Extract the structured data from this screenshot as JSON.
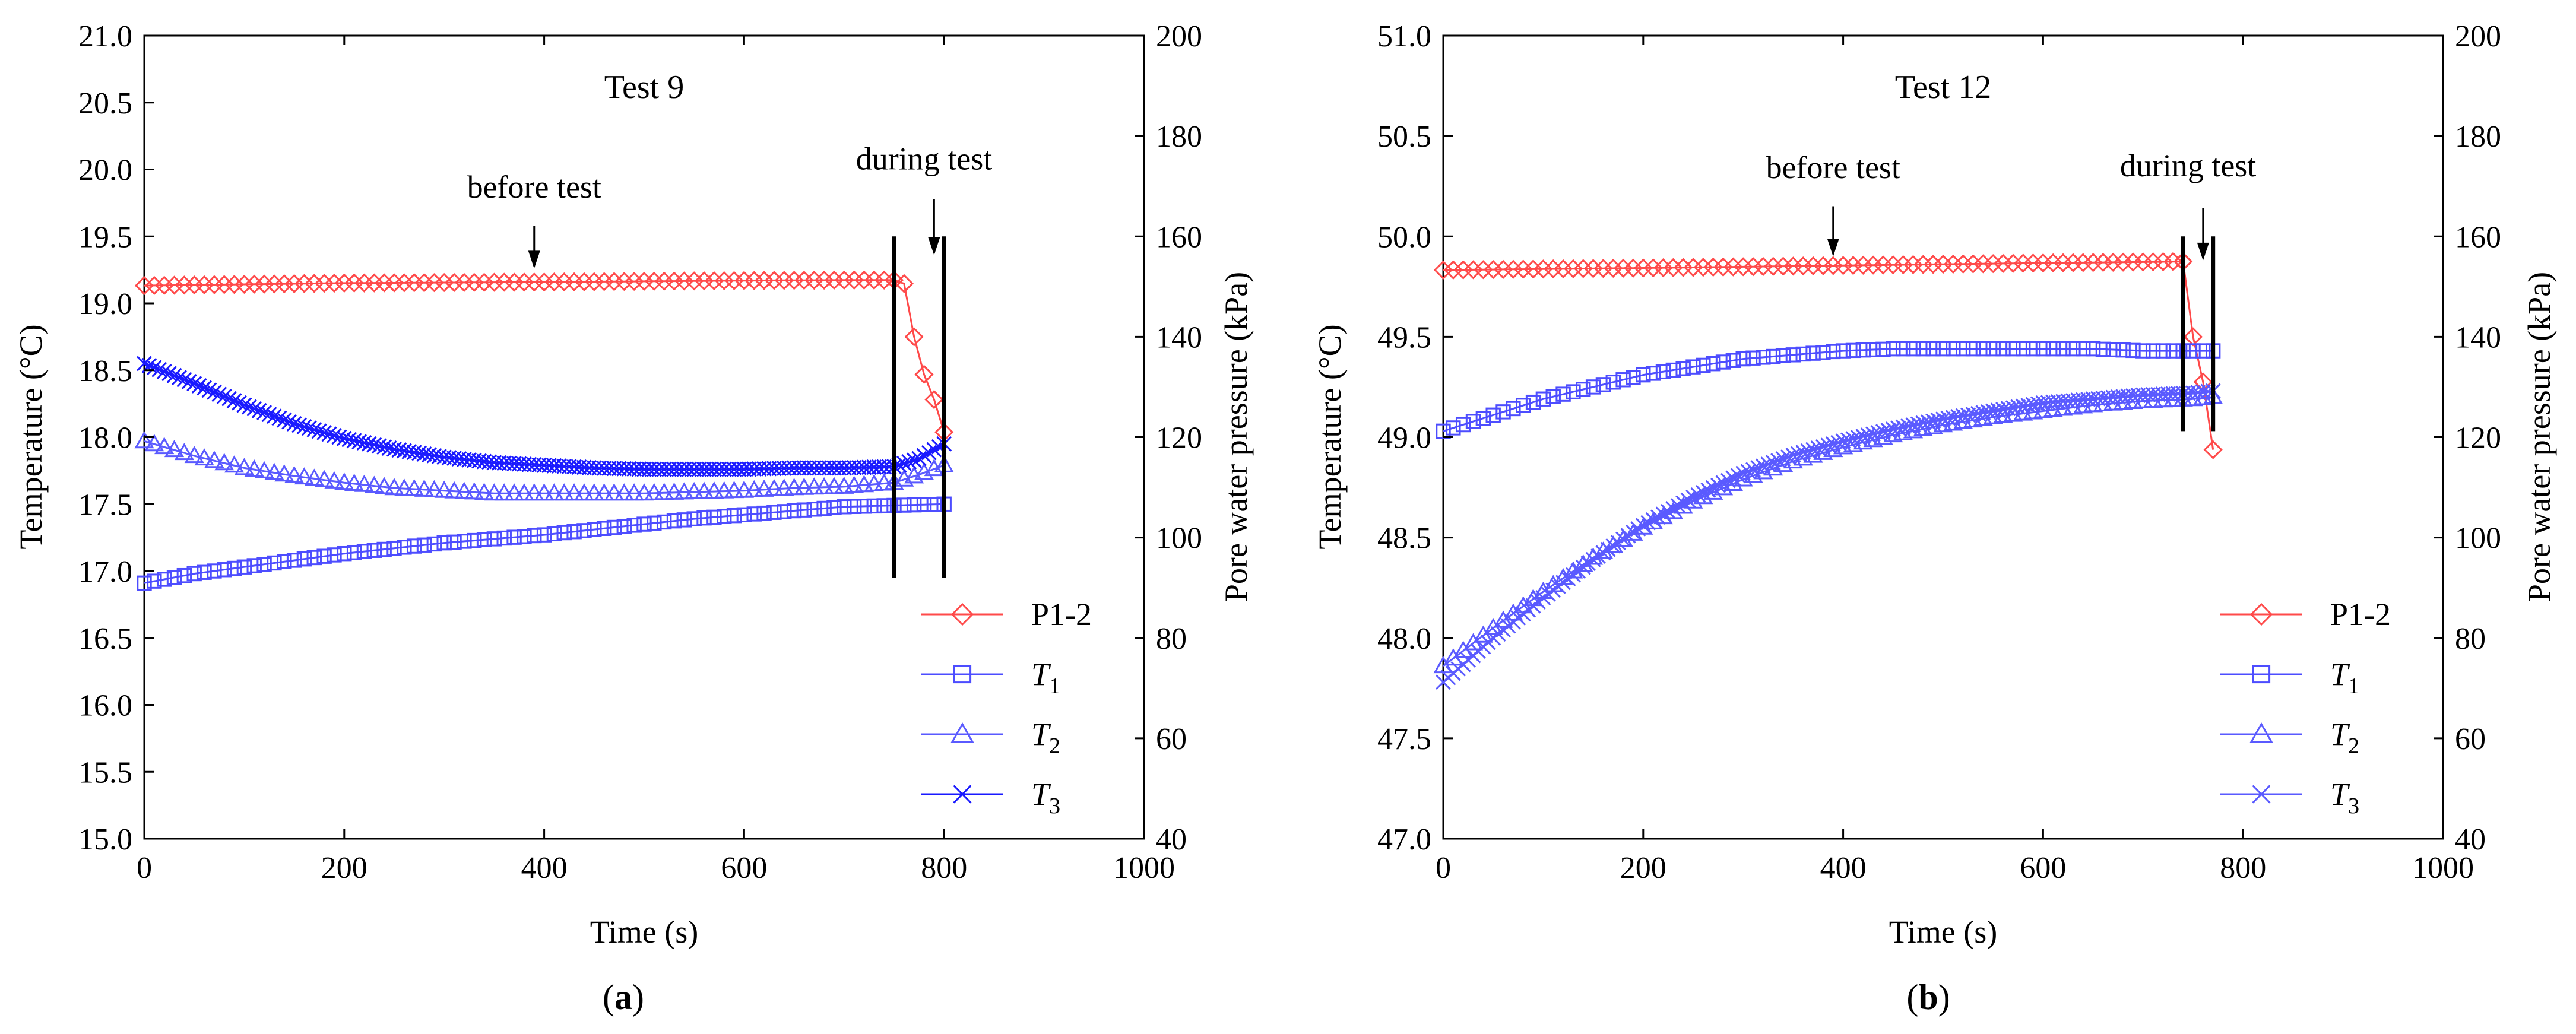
{
  "chart_data": [
    {
      "type": "line",
      "panel": "a",
      "title": "Test 9",
      "xlabel": "Time (s)",
      "ylabel": "Temperature (°C)",
      "y2label": "Pore water pressure (kPa)",
      "xlim": [
        0,
        1000
      ],
      "ylim": [
        15.0,
        21.0
      ],
      "y2lim": [
        40,
        200
      ],
      "xticks": [
        "0",
        "200",
        "400",
        "600",
        "800",
        "1000"
      ],
      "yticks": [
        "15.0",
        "15.5",
        "16.0",
        "16.5",
        "17.0",
        "17.5",
        "18.0",
        "18.5",
        "19.0",
        "19.5",
        "20.0",
        "20.5",
        "21.0"
      ],
      "y2ticks": [
        "40",
        "60",
        "80",
        "100",
        "120",
        "140",
        "160",
        "180",
        "200"
      ],
      "grid": false,
      "legend_position": "bottom-right",
      "annotations": [
        {
          "label": "before test",
          "text_x": 390,
          "text_y": 19.79,
          "arrow_x": 390,
          "arrow_y_from": 19.58,
          "arrow_y_to": 19.26
        },
        {
          "label": "during test",
          "text_x": 780,
          "text_y": 20.0,
          "arrow_x": 790,
          "arrow_y_from": 19.78,
          "arrow_y_to": 19.36
        }
      ],
      "vertical_lines": [
        {
          "x": 750,
          "y_from": 16.95,
          "y_to": 19.5
        },
        {
          "x": 800,
          "y_from": 16.95,
          "y_to": 19.5
        }
      ],
      "series": [
        {
          "name": "P1-2",
          "axis": "right",
          "color": "#ff4a4a",
          "marker": "diamond",
          "marker_step": 10,
          "points": [
            [
              0,
              150.2
            ],
            [
              200,
              150.7
            ],
            [
              400,
              150.9
            ],
            [
              600,
              151.2
            ],
            [
              700,
              151.3
            ],
            [
              750,
              151.3
            ],
            [
              760,
              150.6
            ],
            [
              770,
              140
            ],
            [
              780,
              132.5
            ],
            [
              790,
              127.5
            ],
            [
              800,
              121
            ]
          ]
        },
        {
          "name": "T1",
          "axis": "left",
          "color": "#4d4dff",
          "marker": "square",
          "marker_step": 10,
          "points": [
            [
              0,
              16.91
            ],
            [
              50,
              16.98
            ],
            [
              100,
              17.03
            ],
            [
              150,
              17.08
            ],
            [
              200,
              17.13
            ],
            [
              250,
              17.17
            ],
            [
              300,
              17.21
            ],
            [
              350,
              17.24
            ],
            [
              400,
              17.27
            ],
            [
              450,
              17.31
            ],
            [
              500,
              17.35
            ],
            [
              550,
              17.39
            ],
            [
              600,
              17.42
            ],
            [
              650,
              17.45
            ],
            [
              700,
              17.48
            ],
            [
              750,
              17.49
            ],
            [
              800,
              17.5
            ]
          ]
        },
        {
          "name": "T2",
          "axis": "left",
          "color": "#5a5aff",
          "marker": "triangle",
          "marker_step": 10,
          "points": [
            [
              0,
              17.97
            ],
            [
              50,
              17.86
            ],
            [
              100,
              17.77
            ],
            [
              150,
              17.71
            ],
            [
              200,
              17.66
            ],
            [
              250,
              17.62
            ],
            [
              300,
              17.6
            ],
            [
              350,
              17.58
            ],
            [
              400,
              17.58
            ],
            [
              450,
              17.58
            ],
            [
              500,
              17.58
            ],
            [
              550,
              17.59
            ],
            [
              600,
              17.6
            ],
            [
              650,
              17.62
            ],
            [
              700,
              17.63
            ],
            [
              750,
              17.66
            ],
            [
              775,
              17.72
            ],
            [
              800,
              17.79
            ]
          ]
        },
        {
          "name": "T3",
          "axis": "left",
          "color": "#1a1aff",
          "marker": "x",
          "marker_step": 5,
          "points": [
            [
              0,
              18.55
            ],
            [
              50,
              18.4
            ],
            [
              100,
              18.24
            ],
            [
              150,
              18.1
            ],
            [
              200,
              17.99
            ],
            [
              250,
              17.91
            ],
            [
              300,
              17.85
            ],
            [
              350,
              17.81
            ],
            [
              400,
              17.79
            ],
            [
              450,
              17.77
            ],
            [
              500,
              17.76
            ],
            [
              550,
              17.76
            ],
            [
              600,
              17.76
            ],
            [
              650,
              17.77
            ],
            [
              700,
              17.77
            ],
            [
              750,
              17.78
            ],
            [
              775,
              17.84
            ],
            [
              800,
              17.95
            ]
          ]
        }
      ],
      "legend": [
        {
          "label": "P1-2",
          "sub": "",
          "marker": "diamond",
          "color": "#ff4a4a"
        },
        {
          "label": "T",
          "sub": "1",
          "marker": "square",
          "color": "#4d4dff"
        },
        {
          "label": "T",
          "sub": "2",
          "marker": "triangle",
          "color": "#5a5aff"
        },
        {
          "label": "T",
          "sub": "3",
          "marker": "x",
          "color": "#1a1aff"
        }
      ]
    },
    {
      "type": "line",
      "panel": "b",
      "title": "Test 12",
      "xlabel": "Time (s)",
      "ylabel": "Temperature (°C)",
      "y2label": "Pore water pressure (kPa)",
      "xlim": [
        0,
        1000
      ],
      "ylim": [
        47.0,
        51.0
      ],
      "y2lim": [
        40,
        200
      ],
      "xticks": [
        "0",
        "200",
        "400",
        "600",
        "800",
        "1000"
      ],
      "yticks": [
        "47.0",
        "47.5",
        "48.0",
        "48.5",
        "49.0",
        "49.5",
        "50.0",
        "50.5",
        "51.0"
      ],
      "y2ticks": [
        "40",
        "60",
        "80",
        "100",
        "120",
        "140",
        "160",
        "180",
        "200"
      ],
      "grid": false,
      "legend_position": "bottom-right",
      "annotations": [
        {
          "label": "before test",
          "text_x": 390,
          "text_y": 50.29,
          "arrow_x": 390,
          "arrow_y_from": 50.15,
          "arrow_y_to": 49.9
        },
        {
          "label": "during test",
          "text_x": 745,
          "text_y": 50.3,
          "arrow_x": 760,
          "arrow_y_from": 50.14,
          "arrow_y_to": 49.88
        }
      ],
      "vertical_lines": [
        {
          "x": 740,
          "y_from": 49.03,
          "y_to": 50.0
        },
        {
          "x": 770,
          "y_from": 49.03,
          "y_to": 50.0
        }
      ],
      "series": [
        {
          "name": "P1-2",
          "axis": "right",
          "color": "#ff4a4a",
          "marker": "diamond",
          "marker_step": 10,
          "points": [
            [
              0,
              153.3
            ],
            [
              200,
              153.7
            ],
            [
              400,
              154.2
            ],
            [
              600,
              154.7
            ],
            [
              700,
              154.9
            ],
            [
              740,
              155
            ],
            [
              750,
              140
            ],
            [
              760,
              131
            ],
            [
              770,
              117.5
            ]
          ]
        },
        {
          "name": "T1",
          "axis": "left",
          "color": "#4d4dff",
          "marker": "square",
          "marker_step": 10,
          "points": [
            [
              0,
              49.03
            ],
            [
              50,
              49.11
            ],
            [
              100,
              49.19
            ],
            [
              150,
              49.25
            ],
            [
              200,
              49.31
            ],
            [
              250,
              49.35
            ],
            [
              300,
              49.39
            ],
            [
              350,
              49.41
            ],
            [
              400,
              49.43
            ],
            [
              450,
              49.44
            ],
            [
              500,
              49.44
            ],
            [
              550,
              49.44
            ],
            [
              600,
              49.44
            ],
            [
              650,
              49.44
            ],
            [
              700,
              49.43
            ],
            [
              750,
              49.43
            ],
            [
              770,
              49.43
            ]
          ]
        },
        {
          "name": "T2",
          "axis": "left",
          "color": "#5a5aff",
          "marker": "triangle",
          "marker_step": 10,
          "points": [
            [
              0,
              47.86
            ],
            [
              50,
              48.05
            ],
            [
              100,
              48.23
            ],
            [
              150,
              48.4
            ],
            [
              200,
              48.55
            ],
            [
              250,
              48.68
            ],
            [
              300,
              48.79
            ],
            [
              350,
              48.88
            ],
            [
              400,
              48.95
            ],
            [
              450,
              49.01
            ],
            [
              500,
              49.06
            ],
            [
              550,
              49.1
            ],
            [
              600,
              49.13
            ],
            [
              650,
              49.16
            ],
            [
              700,
              49.18
            ],
            [
              750,
              49.19
            ],
            [
              770,
              49.2
            ]
          ]
        },
        {
          "name": "T3",
          "axis": "left",
          "color": "#5a5aff",
          "marker": "x",
          "marker_step": 5,
          "points": [
            [
              0,
              47.78
            ],
            [
              50,
              48.0
            ],
            [
              100,
              48.2
            ],
            [
              150,
              48.39
            ],
            [
              200,
              48.56
            ],
            [
              250,
              48.7
            ],
            [
              300,
              48.82
            ],
            [
              350,
              48.91
            ],
            [
              400,
              48.98
            ],
            [
              450,
              49.04
            ],
            [
              500,
              49.09
            ],
            [
              550,
              49.13
            ],
            [
              600,
              49.17
            ],
            [
              650,
              49.19
            ],
            [
              700,
              49.21
            ],
            [
              750,
              49.22
            ],
            [
              770,
              49.23
            ]
          ]
        }
      ],
      "legend": [
        {
          "label": "P1-2",
          "sub": "",
          "marker": "diamond",
          "color": "#ff4a4a"
        },
        {
          "label": "T",
          "sub": "1",
          "marker": "square",
          "color": "#4d4dff"
        },
        {
          "label": "T",
          "sub": "2",
          "marker": "triangle",
          "color": "#5a5aff"
        },
        {
          "label": "T",
          "sub": "3",
          "marker": "x",
          "color": "#5a5aff"
        }
      ]
    }
  ],
  "captions": [
    "a",
    "b"
  ]
}
